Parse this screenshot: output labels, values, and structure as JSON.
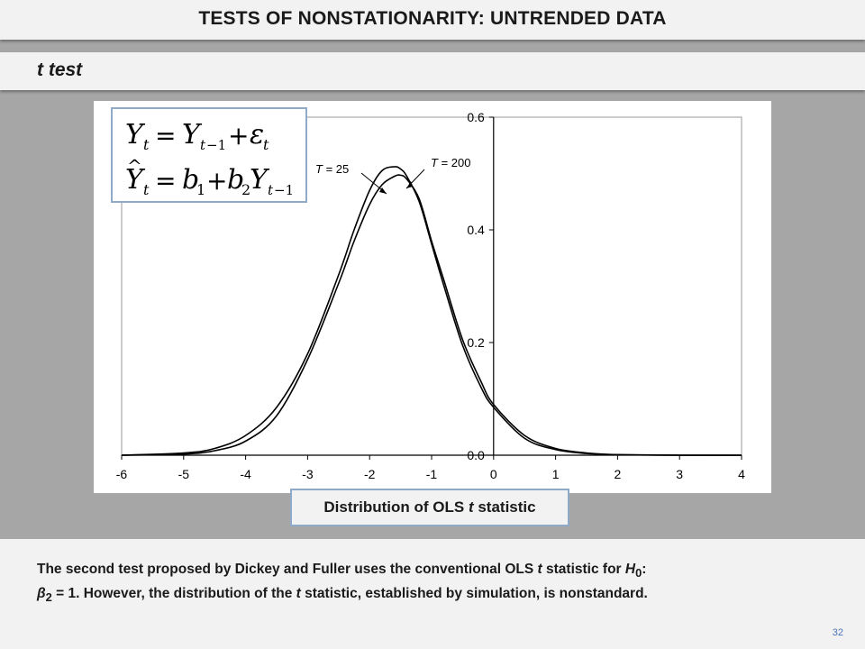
{
  "title": "TESTS OF NONSTATIONARITY: UNTRENDED DATA",
  "subtitle": "t test",
  "equations": {
    "line1": "Yₜ = Yₜ₋₁ + εₜ",
    "line2": "Ŷₜ = b₁ + b₂Yₜ₋₁"
  },
  "caption": {
    "prefix": "Distribution of OLS ",
    "italic": "t",
    "suffix": " statistic"
  },
  "paragraph": {
    "p1": "The second test proposed by Dickey and Fuller uses the conventional OLS ",
    "p2": "t",
    "p3": " statistic for ",
    "p4": "H",
    "p5": "0",
    "p6": ":",
    "p7": "β",
    "p8": "2",
    "p9": " = 1.  However, the distribution of the ",
    "p10": "t",
    "p11": " statistic, established by simulation, is nonstandard."
  },
  "page_number": "32",
  "colors": {
    "background": "#a6a6a6",
    "panel": "#f2f2f2",
    "border": "#8fa9c9",
    "page_number": "#4a74b8"
  },
  "chart_data": {
    "type": "line",
    "xlim": [
      -6,
      4
    ],
    "ylim": [
      0,
      0.6
    ],
    "x_ticks": [
      "-6",
      "-5",
      "-4",
      "-3",
      "-2",
      "-1",
      "0",
      "1",
      "2",
      "3",
      "4"
    ],
    "y_ticks": [
      "0.0",
      "0.2",
      "0.4",
      "0.6"
    ],
    "grid": false,
    "series": [
      {
        "name": "T = 25",
        "x": [
          -6,
          -5,
          -4.5,
          -4,
          -3.5,
          -3,
          -2.5,
          -2.25,
          -2,
          -1.8,
          -1.6,
          -1.5,
          -1.4,
          -1.2,
          -1,
          -0.8,
          -0.5,
          -0.2,
          0,
          0.5,
          1,
          1.5,
          2,
          3,
          4
        ],
        "y": [
          0,
          0.004,
          0.012,
          0.035,
          0.085,
          0.18,
          0.32,
          0.4,
          0.47,
          0.505,
          0.512,
          0.508,
          0.495,
          0.45,
          0.375,
          0.3,
          0.195,
          0.12,
          0.085,
          0.03,
          0.01,
          0.003,
          0.001,
          0,
          0
        ]
      },
      {
        "name": "T = 200",
        "x": [
          -6,
          -5,
          -4.5,
          -4,
          -3.5,
          -3,
          -2.5,
          -2.25,
          -2,
          -1.8,
          -1.6,
          -1.5,
          -1.4,
          -1.2,
          -1,
          -0.8,
          -0.5,
          -0.2,
          0,
          0.5,
          1,
          1.5,
          2,
          3,
          4
        ],
        "y": [
          0,
          0.002,
          0.008,
          0.025,
          0.07,
          0.17,
          0.305,
          0.38,
          0.445,
          0.48,
          0.495,
          0.497,
          0.49,
          0.455,
          0.38,
          0.31,
          0.205,
          0.13,
          0.09,
          0.035,
          0.012,
          0.004,
          0.001,
          0,
          0
        ]
      }
    ],
    "annotations": [
      {
        "label_prefix": "T",
        "label_suffix": " = 25",
        "series": "T = 25"
      },
      {
        "label_prefix": "T",
        "label_suffix": " = 200",
        "series": "T = 200"
      }
    ]
  }
}
